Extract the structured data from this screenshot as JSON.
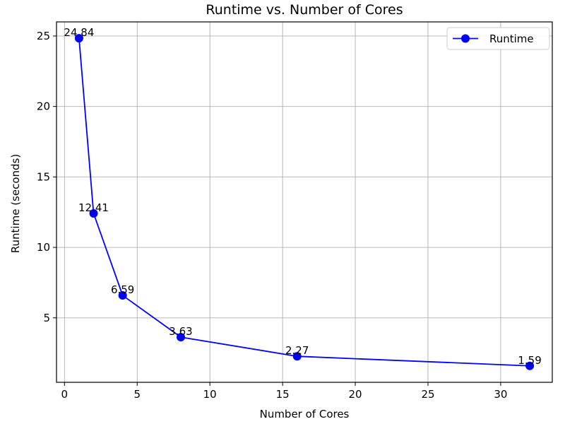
{
  "chart_data": {
    "type": "line",
    "title": "Runtime vs. Number of Cores",
    "xlabel": "Number of Cores",
    "ylabel": "Runtime (seconds)",
    "xlim": [
      -0.55,
      33.55
    ],
    "ylim": [
      0.425,
      26.0
    ],
    "xticks": [
      0,
      5,
      10,
      15,
      20,
      25,
      30
    ],
    "yticks": [
      5,
      10,
      15,
      20,
      25
    ],
    "grid": true,
    "legend_position": "top-right",
    "series": [
      {
        "name": "Runtime",
        "color": "#0000ff",
        "marker": "circle",
        "x": [
          1,
          2,
          4,
          8,
          16,
          32
        ],
        "y": [
          24.84,
          12.41,
          6.59,
          3.63,
          2.27,
          1.59
        ],
        "data_labels": [
          "24.84",
          "12.41",
          "6.59",
          "3.63",
          "2.27",
          "1.59"
        ]
      }
    ]
  }
}
